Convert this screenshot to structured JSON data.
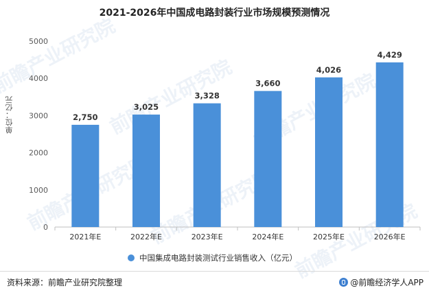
{
  "title": "2021-2026年中国成电路封装行业市场规模预测情况",
  "ylabel": "单位：亿元",
  "legend_label": "中国集成电路封装测试行业销售收入（亿元）",
  "source": "资料来源：前瞻产业研究院整理",
  "app_label": "@前瞻经济学人APP",
  "watermark": "前瞻产业研究院",
  "colors": {
    "bar": "#4a90d9",
    "axis": "#bfbfbf",
    "grid": "#e6e6e6"
  },
  "chart_data": {
    "type": "bar",
    "categories": [
      "2021年E",
      "2022年E",
      "2023年E",
      "2024年E",
      "2025年E",
      "2026年E"
    ],
    "values": [
      2750,
      3025,
      3328,
      3660,
      4026,
      4429
    ],
    "value_labels": [
      "2,750",
      "3,025",
      "3,328",
      "3,660",
      "4,026",
      "4,429"
    ],
    "yticks": [
      0,
      1000,
      2000,
      3000,
      4000,
      5000
    ],
    "ylim": [
      0,
      5000
    ],
    "series": [
      {
        "name": "中国集成电路封装测试行业销售收入（亿元）",
        "values": [
          2750,
          3025,
          3328,
          3660,
          4026,
          4429
        ]
      }
    ],
    "grid": false,
    "legend_position": "bottom"
  }
}
